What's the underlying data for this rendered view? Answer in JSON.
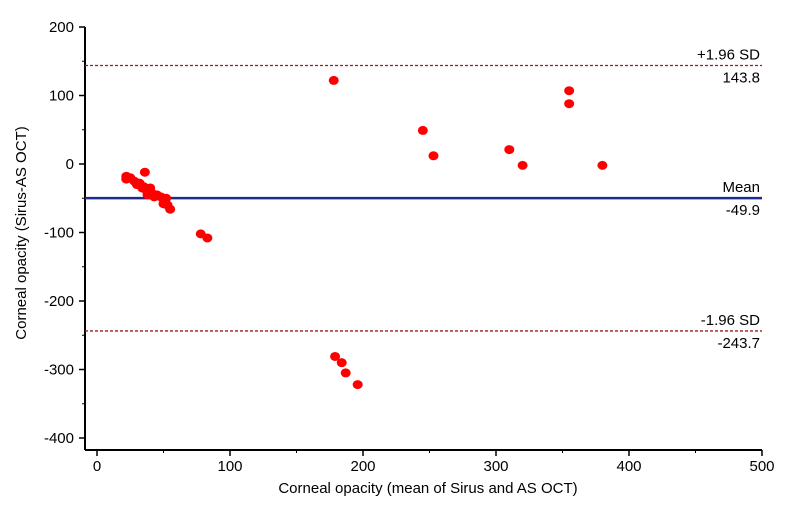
{
  "chart_data": {
    "type": "scatter",
    "title": "",
    "xlabel": "Corneal opacity (mean of Sirus and AS OCT)",
    "ylabel": "Corneal opacity (Sirus-AS OCT)",
    "xlim": [
      0,
      500
    ],
    "ylim": [
      -400,
      200
    ],
    "x_ticks": [
      0,
      100,
      200,
      300,
      400,
      500
    ],
    "y_ticks": [
      200,
      100,
      0,
      -100,
      -200,
      -300,
      -400
    ],
    "grid": false,
    "legend": "none",
    "point_color": "#ff0000",
    "reference_lines": [
      {
        "name": "+1.96 SD",
        "value": 143.8,
        "value_label": "143.8",
        "style": "dashed",
        "color": "#9b1c1c"
      },
      {
        "name": "Mean",
        "value": -49.9,
        "value_label": "-49.9",
        "style": "solid",
        "color": "#1f2a8a"
      },
      {
        "name": "-1.96 SD",
        "value": -243.7,
        "value_label": "-243.7",
        "style": "dashed",
        "color": "#9b1c1c"
      }
    ],
    "points": [
      {
        "x": 22,
        "y": -18
      },
      {
        "x": 22,
        "y": -22
      },
      {
        "x": 25,
        "y": -20
      },
      {
        "x": 28,
        "y": -25
      },
      {
        "x": 30,
        "y": -30
      },
      {
        "x": 32,
        "y": -28
      },
      {
        "x": 34,
        "y": -35
      },
      {
        "x": 35,
        "y": -33
      },
      {
        "x": 36,
        "y": -12
      },
      {
        "x": 37,
        "y": -38
      },
      {
        "x": 38,
        "y": -45
      },
      {
        "x": 40,
        "y": -35
      },
      {
        "x": 41,
        "y": -42
      },
      {
        "x": 43,
        "y": -48
      },
      {
        "x": 45,
        "y": -45
      },
      {
        "x": 48,
        "y": -48
      },
      {
        "x": 50,
        "y": -58
      },
      {
        "x": 52,
        "y": -50
      },
      {
        "x": 53,
        "y": -60
      },
      {
        "x": 55,
        "y": -66
      },
      {
        "x": 78,
        "y": -102
      },
      {
        "x": 83,
        "y": -108
      },
      {
        "x": 178,
        "y": 122
      },
      {
        "x": 179,
        "y": -281
      },
      {
        "x": 184,
        "y": -290
      },
      {
        "x": 187,
        "y": -305
      },
      {
        "x": 196,
        "y": -322
      },
      {
        "x": 245,
        "y": 49
      },
      {
        "x": 253,
        "y": 12
      },
      {
        "x": 310,
        "y": 21
      },
      {
        "x": 320,
        "y": -2
      },
      {
        "x": 355,
        "y": 107
      },
      {
        "x": 355,
        "y": 88
      },
      {
        "x": 380,
        "y": -2
      }
    ]
  }
}
